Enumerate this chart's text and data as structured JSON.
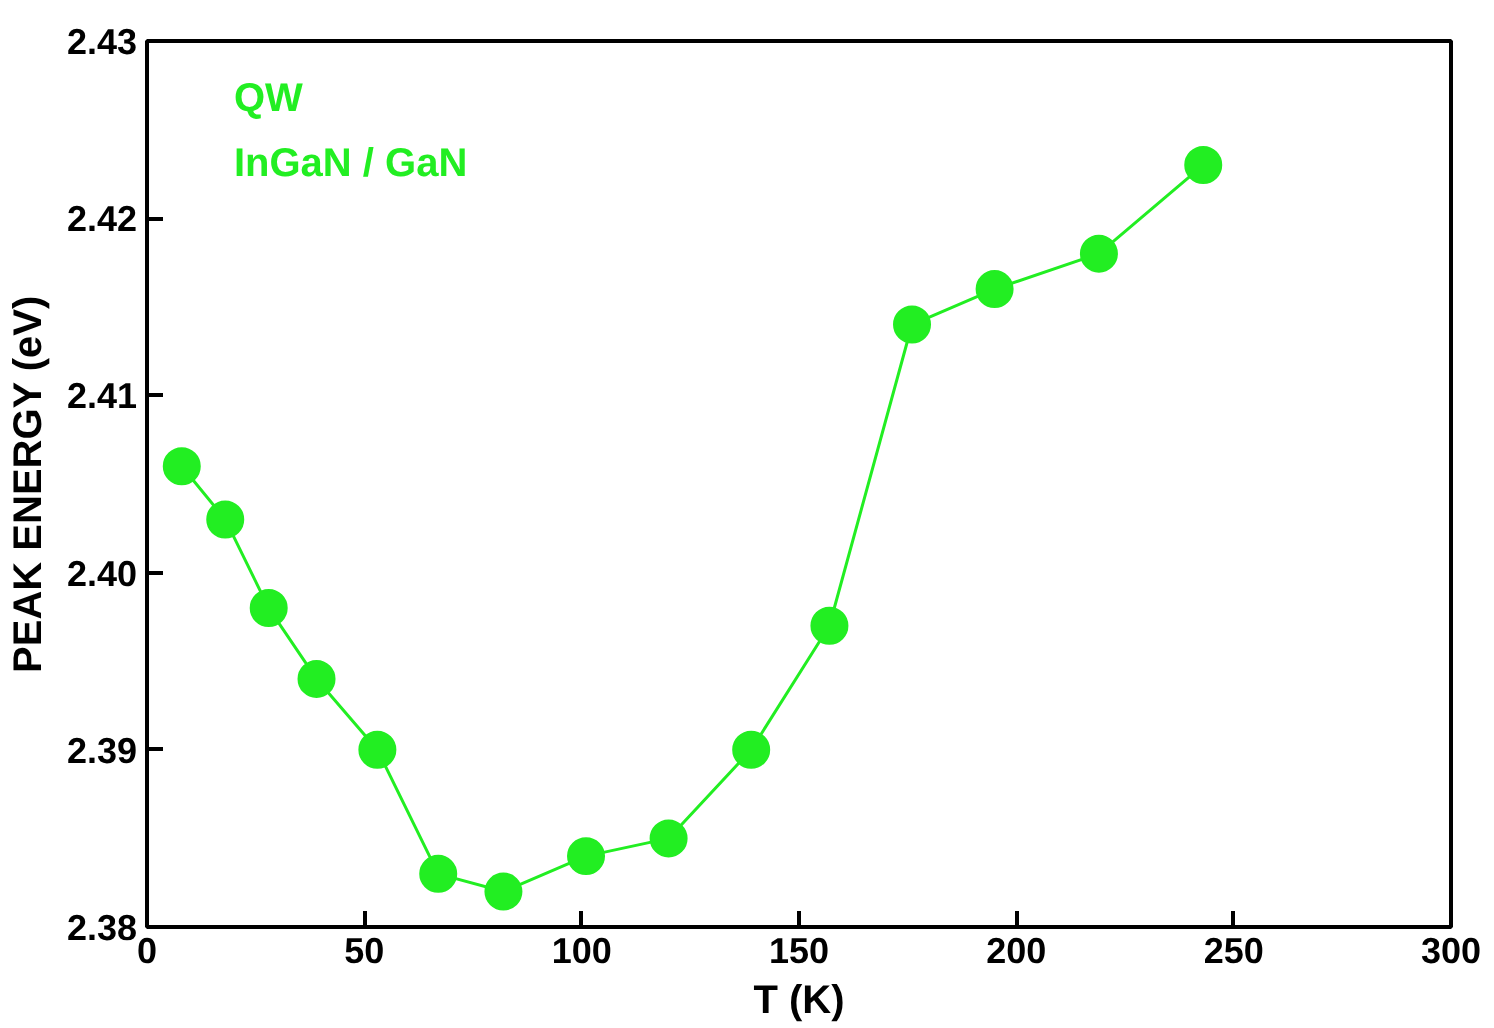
{
  "chart_data": {
    "type": "line",
    "xlabel": "T (K)",
    "ylabel": "PEAK ENERGY (eV)",
    "annotations": [
      "QW",
      "InGaN / GaN"
    ],
    "x": [
      8,
      18,
      28,
      39,
      53,
      67,
      82,
      101,
      120,
      139,
      157,
      176,
      195,
      219,
      243
    ],
    "series": [
      {
        "color": "#22ee22",
        "values": [
          2.406,
          2.403,
          2.398,
          2.394,
          2.39,
          2.383,
          2.382,
          2.384,
          2.385,
          2.39,
          2.397,
          2.414,
          2.416,
          2.418,
          2.423
        ]
      }
    ],
    "xlim": [
      0,
      300
    ],
    "ylim": [
      2.38,
      2.43
    ],
    "xticks": [
      0,
      50,
      100,
      150,
      200,
      250,
      300
    ],
    "yticks": [
      {
        "value": 2.38,
        "label": "2.38"
      },
      {
        "value": 2.39,
        "label": "2.39"
      },
      {
        "value": 2.4,
        "label": "2.40"
      },
      {
        "value": 2.41,
        "label": "2.41"
      },
      {
        "value": 2.42,
        "label": "2.42"
      },
      {
        "value": 2.43,
        "label": "2.43"
      }
    ],
    "grid": false,
    "marker": "circle",
    "line_style": "solid"
  }
}
